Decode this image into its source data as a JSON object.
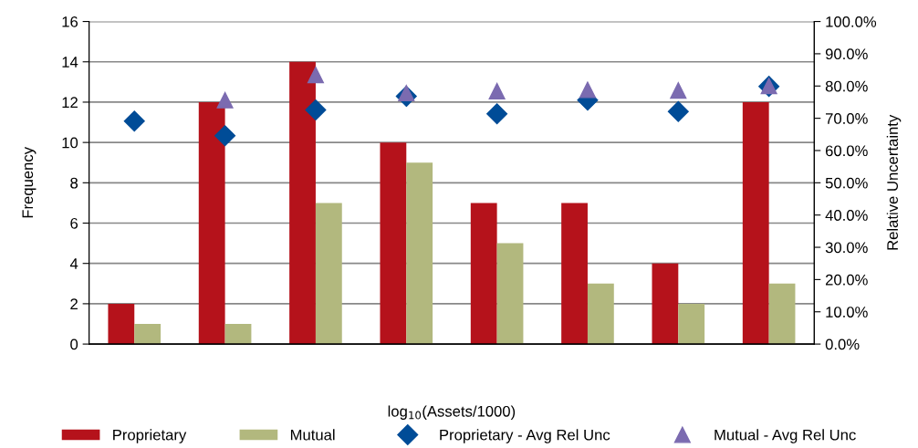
{
  "chart_data": {
    "type": "bar",
    "xlabel": "log$_{10}$(Assets/1000)",
    "ylabel": "Frequency",
    "y2label": "Relative Uncertainty",
    "categories": [
      null,
      null,
      null,
      null,
      null,
      null,
      null,
      null
    ],
    "series": [
      {
        "name": "Proprietary",
        "color": "#b5121b",
        "values": [
          2,
          12,
          14,
          10,
          7,
          7,
          4,
          12
        ]
      },
      {
        "name": "Mutual",
        "color": "#b2b87e",
        "values": [
          1,
          1,
          7,
          9,
          5,
          3,
          2,
          3
        ]
      },
      {
        "name": "Proprietary - Avg Rel Unc",
        "type": "scatter",
        "axis": "y2",
        "marker": "diamond",
        "color": "#004c97",
        "values": [
          69.1,
          64.6,
          72.6,
          76.8,
          71.4,
          75.6,
          72.1,
          79.9
        ]
      },
      {
        "name": "Mutual - Avg Rel Unc",
        "type": "scatter",
        "axis": "y2",
        "marker": "triangle",
        "color": "#7b6bb0",
        "values": [
          null,
          75.6,
          83.4,
          77.8,
          78.4,
          78.8,
          78.6,
          80.0
        ]
      }
    ],
    "ylim": [
      0,
      16
    ],
    "yticks": [
      0,
      2,
      4,
      6,
      8,
      10,
      12,
      14,
      16
    ],
    "y2lim": [
      0,
      100
    ],
    "y2ticks": [
      {
        "value": 0,
        "label": "0.0%"
      },
      {
        "value": 10,
        "label": "10.0%"
      },
      {
        "value": 20,
        "label": "20.0%"
      },
      {
        "value": 30,
        "label": "30.0%"
      },
      {
        "value": 40,
        "label": "40.0%"
      },
      {
        "value": 50,
        "label": "50.0%"
      },
      {
        "value": 60,
        "label": "60.0%"
      },
      {
        "value": 70,
        "label": "70.0%"
      },
      {
        "value": 80,
        "label": "80.0%"
      },
      {
        "value": 90,
        "label": "90.0%"
      },
      {
        "value": 100,
        "label": "100.0%"
      }
    ],
    "grid": "y",
    "legend": "bottom"
  }
}
